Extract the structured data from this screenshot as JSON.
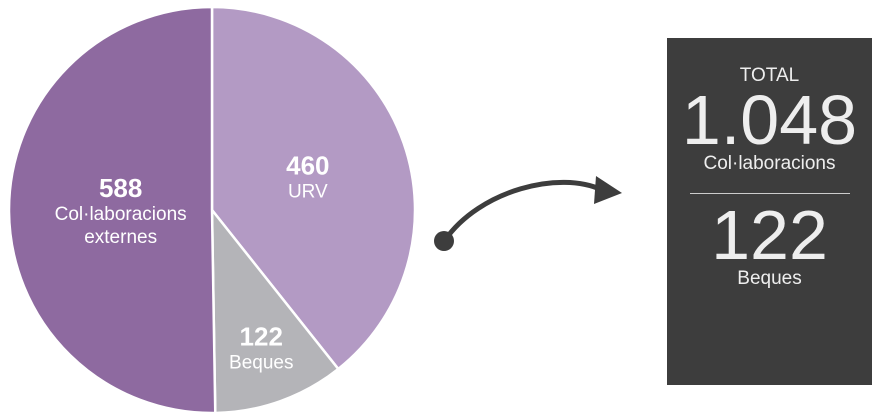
{
  "chart_data": {
    "type": "pie",
    "categories": [
      "URV",
      "Beques",
      "Col·laboracions externes"
    ],
    "values": [
      460,
      122,
      588
    ],
    "colors": [
      "#b39ac4",
      "#b4b4b8",
      "#8e6aa0"
    ]
  },
  "summary": {
    "heading": "TOTAL",
    "total": "1.048",
    "total_label": "Col·laboracions",
    "second": "122",
    "second_label": "Beques"
  }
}
